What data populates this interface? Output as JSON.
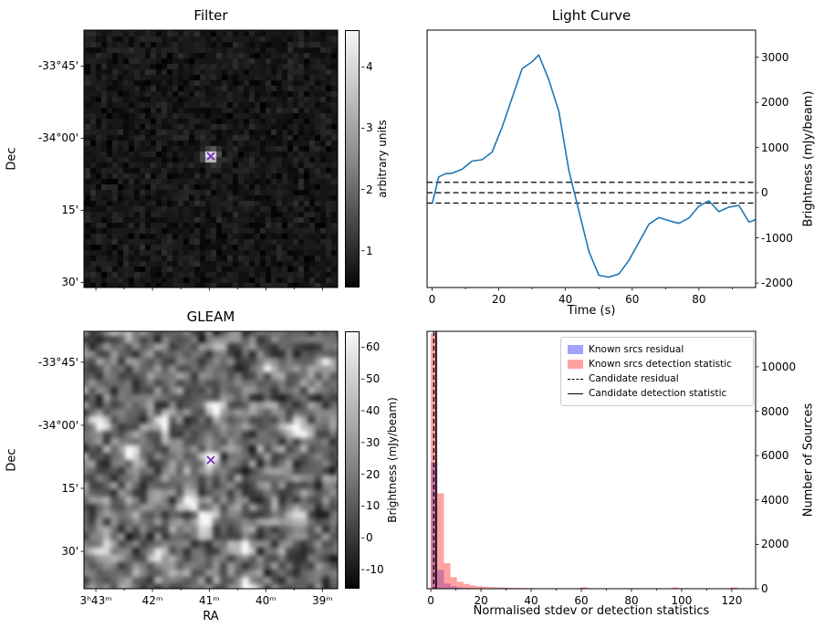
{
  "colors": {
    "background": "#ffffff",
    "line": "#1f77b4",
    "threshold": "#000000",
    "marker": "#7b2fbe",
    "hist_residual": "rgba(70,70,255,0.5)",
    "hist_detection": "rgba(255,70,70,0.5)",
    "candidate_lines": "#000000"
  },
  "chart_data": [
    {
      "type": "heatmap",
      "title": "Filter",
      "xlabel": "",
      "ylabel": "Dec",
      "xtick_labels": [],
      "ytick_labels": [
        "-33°45'",
        "-34°00'",
        "15'",
        "30'"
      ],
      "colorbar_label": "arbitrary units",
      "colorbar_ticks": [
        4,
        3,
        2,
        1
      ],
      "colorbar_range": [
        0.4,
        4.6
      ],
      "description": "dark noisy field with one bright central point source marked with an x",
      "sources": [
        {
          "x_frac": 0.5,
          "y_frac": 0.49,
          "peak": 4.6,
          "marked_with_x": true
        }
      ]
    },
    {
      "type": "line",
      "title": "Light Curve",
      "xlabel": "Time (s)",
      "ylabel": "Brightness (mJy/beam)",
      "xlim": [
        -1.5,
        97
      ],
      "ylim": [
        -2100,
        3600
      ],
      "xticks": [
        0,
        20,
        40,
        60,
        80
      ],
      "yticks": [
        3000,
        2000,
        1000,
        0,
        -1000,
        -2000
      ],
      "x": [
        0,
        2,
        4,
        6,
        9,
        12,
        15,
        18,
        21,
        24,
        27,
        30,
        32,
        35,
        38,
        41,
        44,
        47,
        50,
        53,
        56,
        59,
        62,
        65,
        68,
        71,
        74,
        77,
        80,
        83,
        86,
        89,
        92,
        95,
        97
      ],
      "y": [
        -250,
        350,
        420,
        430,
        520,
        700,
        730,
        900,
        1450,
        2100,
        2750,
        2900,
        3050,
        2500,
        1800,
        500,
        -400,
        -1300,
        -1830,
        -1870,
        -1800,
        -1500,
        -1100,
        -700,
        -550,
        -620,
        -680,
        -560,
        -300,
        -180,
        -420,
        -320,
        -280,
        -650,
        -600
      ],
      "threshold_lines_y": [
        230,
        0,
        -230
      ],
      "threshold_style": "dashed",
      "line_color": "#1f77b4"
    },
    {
      "type": "heatmap",
      "title": "GLEAM",
      "xlabel": "RA",
      "ylabel": "Dec",
      "xtick_labels": [
        "3ʰ43ᵐ",
        "42ᵐ",
        "41ᵐ",
        "40ᵐ",
        "39ᵐ"
      ],
      "ytick_labels": [
        "-33°45'",
        "-34°00'",
        "15'",
        "30'"
      ],
      "colorbar_label": "Brightness (mJy/beam)",
      "colorbar_ticks": [
        60,
        50,
        40,
        30,
        20,
        10,
        0,
        -10
      ],
      "colorbar_range": [
        -16,
        65
      ],
      "description": "smooth mottled radio map with many bright sources; central source marked with an x",
      "sources": [
        {
          "x_frac": 0.31,
          "y_frac": 0.36,
          "peak": 63
        },
        {
          "x_frac": 0.52,
          "y_frac": 0.3,
          "peak": 58
        },
        {
          "x_frac": 0.19,
          "y_frac": 0.47,
          "peak": 45
        },
        {
          "x_frac": 0.5,
          "y_frac": 0.5,
          "peak": 62,
          "marked_with_x": true
        },
        {
          "x_frac": 0.84,
          "y_frac": 0.38,
          "peak": 50
        },
        {
          "x_frac": 0.06,
          "y_frac": 0.37,
          "peak": 35
        },
        {
          "x_frac": 0.42,
          "y_frac": 0.66,
          "peak": 60
        },
        {
          "x_frac": 0.47,
          "y_frac": 0.745,
          "peak": 48
        },
        {
          "x_frac": 0.84,
          "y_frac": 0.72,
          "peak": 46
        },
        {
          "x_frac": 0.63,
          "y_frac": 0.835,
          "peak": 52
        },
        {
          "x_frac": 0.3,
          "y_frac": 0.865,
          "peak": 40
        },
        {
          "x_frac": 0.085,
          "y_frac": 0.845,
          "peak": 38
        },
        {
          "x_frac": 0.64,
          "y_frac": 0.985,
          "peak": 55
        },
        {
          "x_frac": 0.955,
          "y_frac": 0.115,
          "peak": 30
        },
        {
          "x_frac": 0.72,
          "y_frac": 0.14,
          "peak": 28
        }
      ]
    },
    {
      "type": "bar",
      "subtype": "histogram",
      "title": "",
      "xlabel": "Normalised stdev or detection statistics",
      "ylabel": "Number of Sources",
      "xlim": [
        -1.5,
        129.5
      ],
      "ylim": [
        0,
        11600
      ],
      "xticks": [
        0,
        20,
        40,
        60,
        80,
        100,
        120
      ],
      "yticks": [
        0,
        2000,
        4000,
        6000,
        8000,
        10000
      ],
      "bin_start": 0,
      "bin_width": 2.6,
      "legend": [
        "Known srcs residual",
        "Known srcs detection statistic",
        "Candidate residual",
        "Candidate detection statistic"
      ],
      "legend_position": "upper right",
      "series": [
        {
          "name": "Known srcs residual",
          "color": "rgba(70,70,255,0.5)",
          "values": [
            5700,
            850,
            230,
            110,
            55,
            30,
            18,
            10,
            6,
            4,
            2,
            2,
            1,
            1,
            0,
            0,
            0,
            0,
            0,
            0,
            0,
            0,
            0,
            0,
            0,
            0,
            0,
            0,
            0,
            0,
            0,
            0,
            0,
            0,
            0,
            0,
            0,
            0,
            0,
            0,
            0,
            0,
            0,
            0,
            0,
            0,
            0,
            0,
            0,
            0
          ]
        },
        {
          "name": "Known srcs detection statistic",
          "color": "rgba(255,70,70,0.5)",
          "values": [
            11500,
            4300,
            1150,
            520,
            310,
            215,
            150,
            110,
            85,
            68,
            55,
            45,
            38,
            32,
            27,
            23,
            20,
            17,
            15,
            13,
            11,
            10,
            9,
            70,
            7,
            6,
            5,
            5,
            4,
            4,
            3,
            3,
            3,
            2,
            2,
            2,
            2,
            55,
            1,
            1,
            1,
            1,
            1,
            1,
            1,
            1,
            60,
            1,
            1,
            1
          ]
        }
      ],
      "candidate_residual_x": 1.2,
      "candidate_detection_statistic_x": 2.1
    }
  ]
}
